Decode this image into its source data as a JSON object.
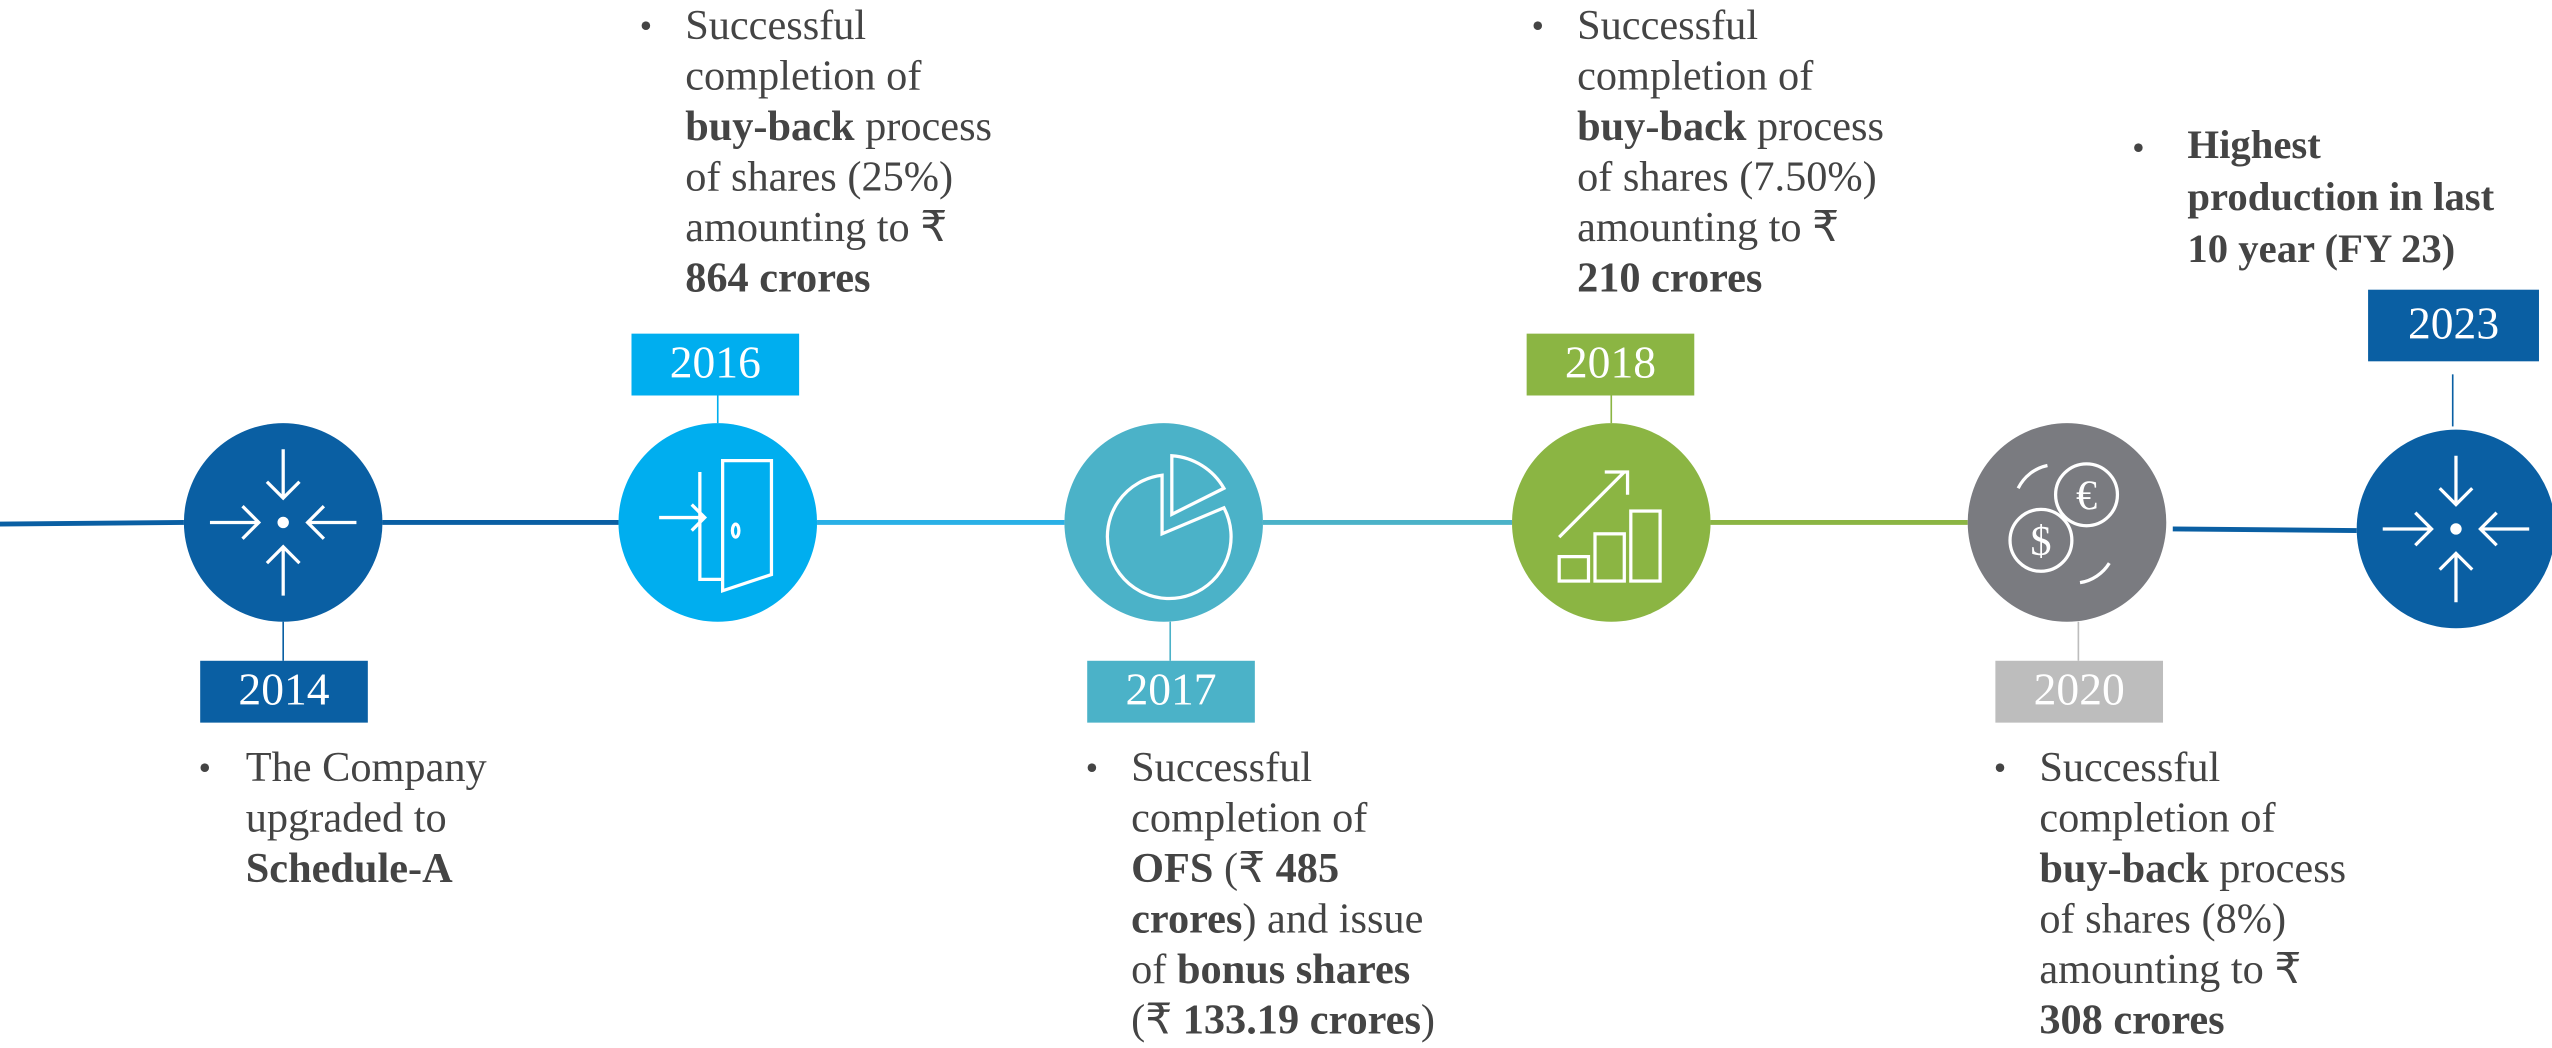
{
  "events": [
    {
      "year": "2014",
      "color": "#0a5fa3",
      "lines": [
        [
          {
            "text": "The Company"
          }
        ],
        [
          {
            "text": "upgraded to"
          }
        ],
        [
          {
            "text": "Schedule-A",
            "bold": true
          }
        ]
      ]
    },
    {
      "year": "2016",
      "color": "#00aeef",
      "lines": [
        [
          {
            "text": "Successful"
          }
        ],
        [
          {
            "text": "completion of"
          }
        ],
        [
          {
            "text": "buy-back",
            "bold": true
          },
          {
            "text": " process"
          }
        ],
        [
          {
            "text": "of shares (25%)"
          }
        ],
        [
          {
            "text": "amounting to ₹"
          }
        ],
        [
          {
            "text": "864 crores",
            "bold": true
          }
        ]
      ]
    },
    {
      "year": "2017",
      "color": "#4bb2c8",
      "lines": [
        [
          {
            "text": "Successful"
          }
        ],
        [
          {
            "text": "completion of"
          }
        ],
        [
          {
            "text": "OFS",
            "bold": true
          },
          {
            "text": " (₹ "
          },
          {
            "text": "485",
            "bold": true
          }
        ],
        [
          {
            "text": "crores",
            "bold": true
          },
          {
            "text": ") and issue"
          }
        ],
        [
          {
            "text": "of "
          },
          {
            "text": "bonus shares",
            "bold": true
          }
        ],
        [
          {
            "text": "(₹ "
          },
          {
            "text": "133.19 crores",
            "bold": true
          },
          {
            "text": ")"
          }
        ]
      ]
    },
    {
      "year": "2018",
      "color": "#8bb543",
      "lines": [
        [
          {
            "text": "Successful"
          }
        ],
        [
          {
            "text": "completion of"
          }
        ],
        [
          {
            "text": "buy-back",
            "bold": true
          },
          {
            "text": " process"
          }
        ],
        [
          {
            "text": "of shares (7.50%)"
          }
        ],
        [
          {
            "text": "amounting to ₹"
          }
        ],
        [
          {
            "text": "210 crores",
            "bold": true
          }
        ]
      ]
    },
    {
      "year": "2020",
      "color": "#bdbdbd",
      "lines": [
        [
          {
            "text": "Successful"
          }
        ],
        [
          {
            "text": "completion of"
          }
        ],
        [
          {
            "text": "buy-back",
            "bold": true
          },
          {
            "text": " process"
          }
        ],
        [
          {
            "text": "of shares (8%)"
          }
        ],
        [
          {
            "text": "amounting to ₹"
          }
        ],
        [
          {
            "text": "308 crores",
            "bold": true
          }
        ]
      ]
    },
    {
      "year": "2023",
      "color": "#0a5fa3",
      "lines": [
        [
          {
            "text": "Highest",
            "bold": true
          }
        ],
        [
          {
            "text": "production in last",
            "bold": true
          }
        ],
        [
          {
            "text": "10 year (FY 23)",
            "bold": true
          }
        ]
      ]
    }
  ]
}
